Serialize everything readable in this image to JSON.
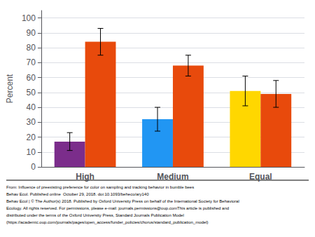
{
  "chart_data": {
    "type": "bar",
    "categories": [
      "High",
      "Medium",
      "Equal"
    ],
    "ylabel": "Percent",
    "series": [
      {
        "colors": [
          "#7B2D8B",
          "#2196F3",
          "#FFD700"
        ],
        "values": [
          17,
          32,
          51
        ],
        "errors": [
          6,
          8,
          10
        ]
      },
      {
        "colors": [
          "#E84A0C",
          "#E84A0C",
          "#E84A0C"
        ],
        "values": [
          84,
          68,
          49
        ],
        "errors": [
          9,
          7,
          9
        ]
      }
    ],
    "ylim": [
      0,
      105
    ],
    "yticks": [
      0,
      10,
      20,
      30,
      40,
      50,
      60,
      70,
      80,
      90,
      100
    ],
    "grid": true,
    "annotations": [
      "From: Influence of preexisting preference for color on sampling and tracking behavior in bumble bees",
      "Behav Ecol. Published online  October 29, 2018. doi:10.1093/beheco/ary140",
      "Behav Ecol | © The Author(s) 2018. Published by Oxford University Press on behalf of the International Society for Behavioral",
      "Ecology. All rights reserved. For permissions, please e-mail: journals.permissions@oup.comThis article is published and",
      "distributed under the terms of the Oxford University Press, Standard Journals Publication Model",
      "(https://academic.oup.com/journals/pages/open_access/funder_policies/chorus/standard_publication_model)"
    ]
  }
}
